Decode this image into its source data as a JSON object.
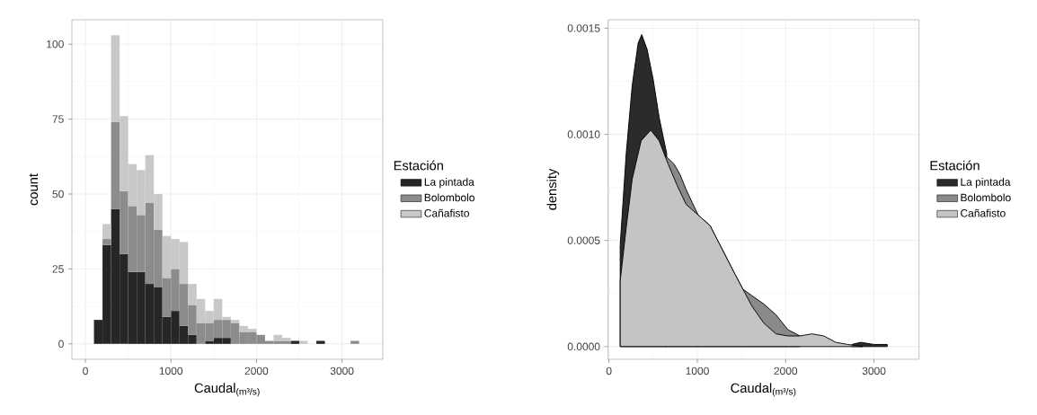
{
  "chart_data": [
    {
      "type": "bar",
      "stacked": true,
      "xlabel": "Caudal$_{(m³/s)}$",
      "ylabel": "count",
      "legend_title": "Estación",
      "legend": "right",
      "grid": true,
      "x": [
        150,
        250,
        350,
        450,
        550,
        650,
        750,
        850,
        950,
        1050,
        1150,
        1250,
        1350,
        1450,
        1550,
        1650,
        1750,
        1850,
        1950,
        2050,
        2150,
        2250,
        2350,
        2450,
        2550,
        2650,
        2750,
        2850,
        2950,
        3050,
        3150
      ],
      "series": [
        {
          "name": "La pintada",
          "color": "#262626",
          "values": [
            8,
            33,
            45,
            30,
            24,
            24,
            20,
            19,
            9,
            11,
            6,
            3,
            0,
            1,
            2,
            2,
            0,
            0,
            0,
            0,
            0,
            0,
            0,
            1,
            0,
            0,
            1,
            0,
            0,
            0,
            0
          ]
        },
        {
          "name": "Bolombolo",
          "color": "#8c8c8c",
          "values": [
            0,
            2,
            29,
            21,
            22,
            19,
            27,
            19,
            13,
            14,
            14,
            10,
            7,
            6,
            6,
            6,
            7,
            4,
            4,
            3,
            1,
            1,
            1,
            0,
            0,
            0,
            0,
            0,
            0,
            0,
            1
          ]
        },
        {
          "name": "Cañafisto",
          "color": "#c8c8c8",
          "values": [
            0,
            5,
            29,
            25,
            14,
            15,
            16,
            12,
            14,
            10,
            14,
            7,
            8,
            4,
            7,
            1,
            1,
            2,
            1,
            0,
            0,
            2,
            1,
            0,
            1,
            0,
            0,
            0,
            0,
            0,
            0
          ]
        }
      ],
      "xlim": [
        -158,
        3477
      ],
      "ylim": [
        -5.15,
        108.15
      ],
      "xticks": [
        0,
        1000,
        2000,
        3000
      ],
      "yticks": [
        0,
        25,
        50,
        75,
        100
      ]
    },
    {
      "type": "area",
      "xlabel": "Caudal$_{(m³/s)}$",
      "ylabel": "density",
      "legend_title": "Estación",
      "legend": "right",
      "grid": true,
      "series": [
        {
          "name": "La pintada",
          "color": "#2b2b2b",
          "x": [
            127,
            195,
            263,
            330,
            371,
            432,
            500,
            568,
            653,
            1500,
            2750,
            2850,
            3000,
            3150
          ],
          "values": [
            0.00048,
            0.00091,
            0.00123,
            0.00143,
            0.00147,
            0.0014,
            0.00126,
            0.00108,
            0.00091,
            null,
            1e-05,
            2e-05,
            1e-05,
            1e-05
          ]
        },
        {
          "name": "Bolombolo",
          "color": "#8a8a8a",
          "x": [
            636,
            737,
            805,
            873,
            941,
            1009,
            1144,
            1280,
            1415,
            1517,
            1619,
            1754,
            1890,
            2025,
            2161
          ],
          "values": [
            0.0009,
            0.00086,
            0.00081,
            0.00074,
            0.00068,
            0.00062,
            0.00057,
            0.00046,
            0.00035,
            0.00027,
            0.00024,
            0.0002,
            0.00015,
            8e-05,
            5e-05
          ]
        },
        {
          "name": "Cañafisto",
          "color": "#c4c4c4",
          "x": [
            127,
            195,
            263,
            364,
            473,
            568,
            670,
            771,
            873,
            1009,
            1144,
            1280,
            1415,
            1517,
            1619,
            1754,
            1890,
            2025,
            2161,
            2297,
            2432,
            2568,
            2704,
            2873
          ],
          "values": [
            0.00031,
            0.00056,
            0.00079,
            0.00097,
            0.00102,
            0.00097,
            0.00086,
            0.00076,
            0.00067,
            0.00062,
            0.00057,
            0.00046,
            0.00035,
            0.00027,
            0.00019,
            0.00011,
            6e-05,
            5e-05,
            5e-05,
            6e-05,
            5e-05,
            2e-05,
            1e-05,
            0
          ]
        }
      ],
      "xlim": [
        -10,
        3510
      ],
      "ylim": [
        -6e-05,
        0.00154
      ],
      "xticks": [
        0,
        1000,
        2000,
        3000
      ],
      "yticks": [
        {
          "value": 0,
          "label": "0.0000"
        },
        {
          "value": 0.0005,
          "label": "0.0005"
        },
        {
          "value": 0.001,
          "label": "0.0010"
        },
        {
          "value": 0.0015,
          "label": "0.0015"
        }
      ]
    }
  ]
}
